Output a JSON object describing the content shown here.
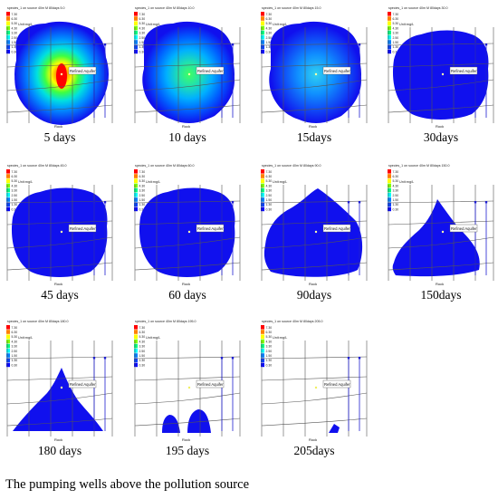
{
  "legend": {
    "values": [
      "7.30",
      "6.30",
      "5.30",
      "4.30",
      "3.30",
      "2.50",
      "1.50",
      "1.30",
      "0.30"
    ],
    "colors": [
      "#ff0000",
      "#ff8000",
      "#ffff00",
      "#80ff00",
      "#00ff80",
      "#00ffff",
      "#0080ff",
      "#0040ff",
      "#0000ff"
    ],
    "unit_label": "Unit:mg/L"
  },
  "labels": {
    "aquifer": "Refined Aquifer",
    "rock": "Rock"
  },
  "panels": [
    {
      "title": "species_1 on source 40m M 80days 5.0",
      "label": "5 days",
      "shape": "hotspot",
      "hot_level": "high"
    },
    {
      "title": "species_1 on source 40m M 80days 10.0",
      "label": "10 days",
      "shape": "hotspot",
      "hot_level": "mid"
    },
    {
      "title": "species_1 on source 40m M 80days 15.0",
      "label": "15days",
      "shape": "hotspot",
      "hot_level": "low"
    },
    {
      "title": "species_1 on source 40m M 80days 30.0",
      "label": "30days",
      "shape": "blob_large",
      "hot_level": "none"
    },
    {
      "title": "species_1 on source 40m M 80days 45.0",
      "label": "45 days",
      "shape": "blob_large",
      "hot_level": "none"
    },
    {
      "title": "species_1 on source 40m M 80days 60.0",
      "label": "60 days",
      "shape": "blob_large",
      "hot_level": "none"
    },
    {
      "title": "species_1 on source 40m M 80days 90.0",
      "label": "90days",
      "shape": "blob_mid",
      "hot_level": "none"
    },
    {
      "title": "species_1 on source 40m M 80days 150.0",
      "label": "150days",
      "shape": "blob_peak",
      "hot_level": "none"
    },
    {
      "title": "species_1 on source 40m M 80days 180.0",
      "label": "180 days",
      "shape": "blob_narrow",
      "hot_level": "none"
    },
    {
      "title": "species_1 on source 40m M 80days 195.0",
      "label": "195 days",
      "shape": "two_blobs",
      "hot_level": "none"
    },
    {
      "title": "species_1 on source 40m M 80days 205.0",
      "label": "205days",
      "shape": "tiny_blob",
      "hot_level": "none"
    }
  ],
  "caption": "The pumping wells above the pollution source"
}
